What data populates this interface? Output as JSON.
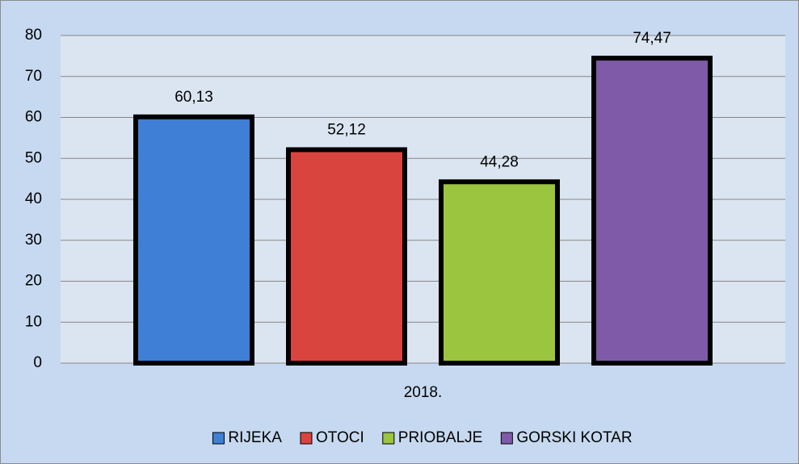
{
  "chart_data": {
    "type": "bar",
    "categories": [
      "2018."
    ],
    "series": [
      {
        "name": "RIJEKA",
        "color": "#3f7fd6",
        "values": [
          60.13
        ],
        "value_labels": [
          "60,13"
        ]
      },
      {
        "name": "OTOCI",
        "color": "#d9443f",
        "values": [
          52.12
        ],
        "value_labels": [
          "52,12"
        ]
      },
      {
        "name": "PRIOBALJE",
        "color": "#9bc43f",
        "values": [
          44.28
        ],
        "value_labels": [
          "44,28"
        ]
      },
      {
        "name": "GORSKI KOTAR",
        "color": "#7f5aa8",
        "values": [
          74.47
        ],
        "value_labels": [
          "74,47"
        ]
      }
    ],
    "ylim": [
      0,
      80
    ],
    "yticks": [
      0,
      10,
      20,
      30,
      40,
      50,
      60,
      70,
      80
    ],
    "grid": true,
    "legend": "bottom"
  }
}
